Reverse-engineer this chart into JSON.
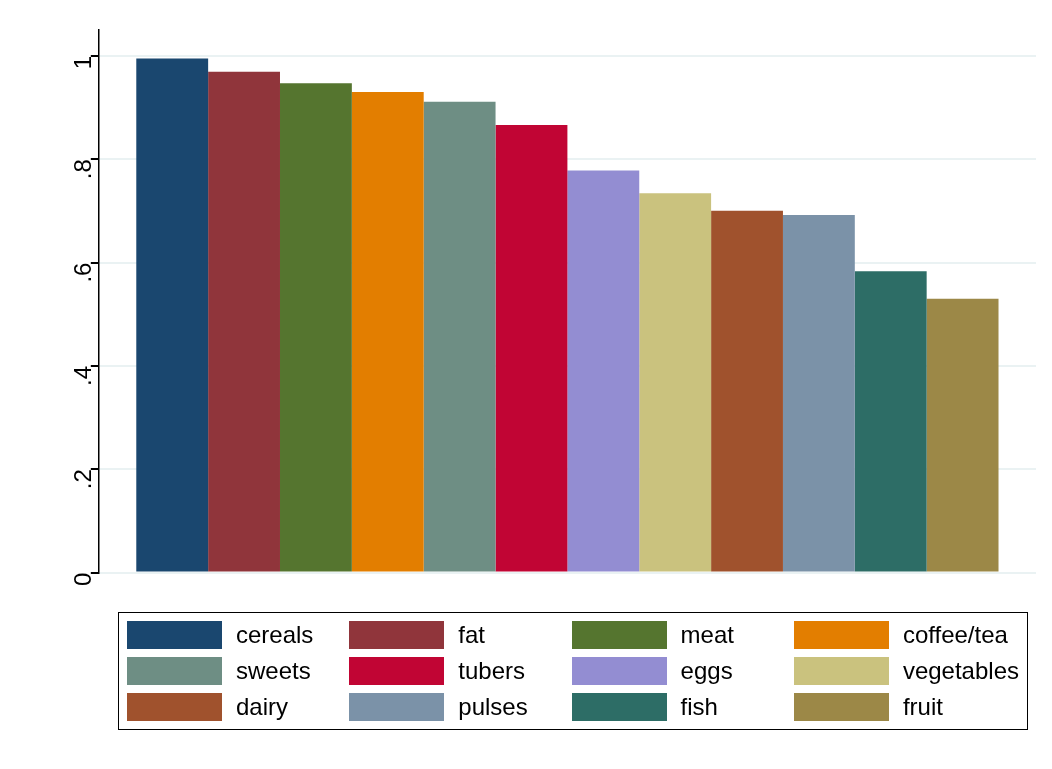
{
  "chart_data": {
    "type": "bar",
    "categories": [
      null
    ],
    "series": [
      {
        "name": "cereals",
        "color": "#1a476f",
        "values": [
          0.995
        ]
      },
      {
        "name": "fat",
        "color": "#90353b",
        "values": [
          0.969
        ]
      },
      {
        "name": "meat",
        "color": "#55752f",
        "values": [
          0.947
        ]
      },
      {
        "name": "coffee/tea",
        "color": "#e37e00",
        "values": [
          0.93
        ]
      },
      {
        "name": "sweets",
        "color": "#6e8e84",
        "values": [
          0.911
        ]
      },
      {
        "name": "tubers",
        "color": "#c10534",
        "values": [
          0.866
        ]
      },
      {
        "name": "eggs",
        "color": "#938dd2",
        "values": [
          0.778
        ]
      },
      {
        "name": "vegetables",
        "color": "#cac27e",
        "values": [
          0.734
        ]
      },
      {
        "name": "dairy",
        "color": "#a0522d",
        "values": [
          0.7
        ]
      },
      {
        "name": "pulses",
        "color": "#7b92a8",
        "values": [
          0.692
        ]
      },
      {
        "name": "fish",
        "color": "#2d6d66",
        "values": [
          0.583
        ]
      },
      {
        "name": "fruit",
        "color": "#9c8847",
        "values": [
          0.53
        ]
      }
    ],
    "ylim": [
      0,
      1.05
    ],
    "yticks": [
      {
        "value": 0,
        "label": "0"
      },
      {
        "value": 0.2,
        "label": ".2"
      },
      {
        "value": 0.4,
        "label": ".4"
      },
      {
        "value": 0.6,
        "label": ".6"
      },
      {
        "value": 0.8,
        "label": ".8"
      },
      {
        "value": 1,
        "label": "1"
      }
    ],
    "grid": "y",
    "legend": "bottom"
  }
}
